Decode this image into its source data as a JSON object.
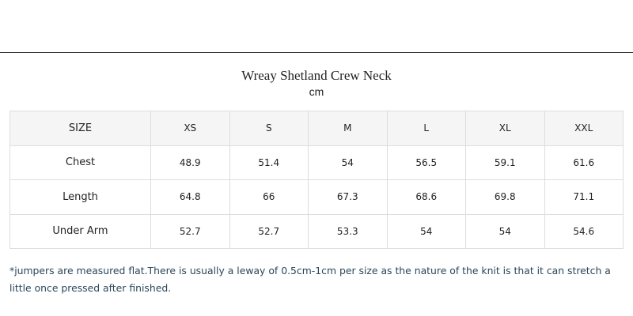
{
  "header": {
    "title": "Wreay Shetland Crew Neck",
    "subtitle": "cm"
  },
  "table": {
    "columns": [
      "SIZE",
      "XS",
      "S",
      "M",
      "L",
      "XL",
      "XXL"
    ],
    "rows": [
      [
        "Chest",
        48.9,
        51.4,
        54,
        56.5,
        59.1,
        61.6
      ],
      [
        "Length",
        64.8,
        66,
        67.3,
        68.6,
        69.8,
        71.1
      ],
      [
        "Under Arm",
        52.7,
        52.7,
        53.3,
        54,
        54,
        54.6
      ]
    ]
  },
  "note": "*jumpers are measured flat.There is usually a leway of 0.5cm-1cm per size as the nature of the knit is that it can stretch a little once pressed after finished."
}
